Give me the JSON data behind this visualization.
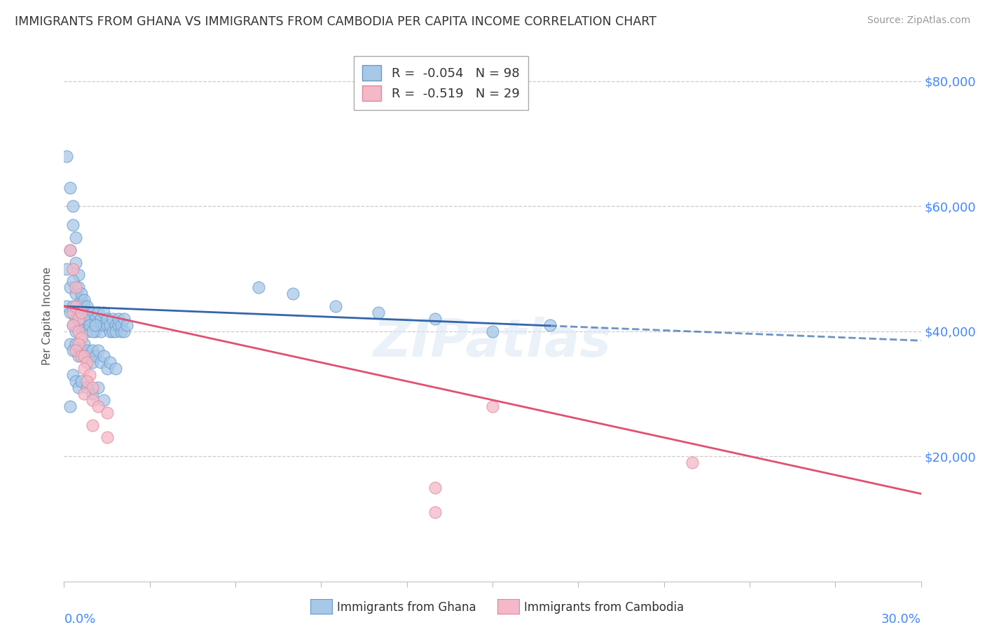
{
  "title": "IMMIGRANTS FROM GHANA VS IMMIGRANTS FROM CAMBODIA PER CAPITA INCOME CORRELATION CHART",
  "source": "Source: ZipAtlas.com",
  "ylabel": "Per Capita Income",
  "xmin": 0.0,
  "xmax": 0.3,
  "ymin": 0,
  "ymax": 85000,
  "yticks": [
    20000,
    40000,
    60000,
    80000
  ],
  "ytick_labels": [
    "$20,000",
    "$40,000",
    "$60,000",
    "$80,000"
  ],
  "ghana_color": "#a8c8e8",
  "cambodia_color": "#f4b8c8",
  "ghana_edge": "#6699cc",
  "cambodia_edge": "#e08898",
  "ghana_line_color": "#3366aa",
  "cambodia_line_color": "#e05070",
  "ghana_R": -0.054,
  "ghana_N": 98,
  "cambodia_R": -0.519,
  "cambodia_N": 29,
  "legend_label_ghana": "Immigrants from Ghana",
  "legend_label_cambodia": "Immigrants from Cambodia",
  "watermark": "ZIPatlas",
  "ghana_trend_x": [
    0.0,
    0.3
  ],
  "ghana_trend_y": [
    44000,
    38500
  ],
  "ghana_trend_solid_end": 0.17,
  "cambodia_trend_x": [
    0.0,
    0.3
  ],
  "cambodia_trend_y": [
    44000,
    14000
  ],
  "ghana_scatter": [
    [
      0.001,
      68000
    ],
    [
      0.002,
      63000
    ],
    [
      0.003,
      60000
    ],
    [
      0.003,
      57000
    ],
    [
      0.004,
      55000
    ],
    [
      0.002,
      53000
    ],
    [
      0.004,
      51000
    ],
    [
      0.005,
      49000
    ],
    [
      0.001,
      50000
    ],
    [
      0.002,
      47000
    ],
    [
      0.003,
      48000
    ],
    [
      0.004,
      46000
    ],
    [
      0.005,
      47000
    ],
    [
      0.006,
      45000
    ],
    [
      0.005,
      44000
    ],
    [
      0.006,
      46000
    ],
    [
      0.007,
      44000
    ],
    [
      0.007,
      45000
    ],
    [
      0.008,
      43000
    ],
    [
      0.008,
      44000
    ],
    [
      0.009,
      43000
    ],
    [
      0.006,
      42000
    ],
    [
      0.007,
      41000
    ],
    [
      0.008,
      42000
    ],
    [
      0.009,
      41000
    ],
    [
      0.01,
      43000
    ],
    [
      0.01,
      41000
    ],
    [
      0.011,
      42000
    ],
    [
      0.011,
      40000
    ],
    [
      0.012,
      41000
    ],
    [
      0.012,
      43000
    ],
    [
      0.013,
      42000
    ],
    [
      0.013,
      40000
    ],
    [
      0.014,
      41000
    ],
    [
      0.014,
      43000
    ],
    [
      0.015,
      41000
    ],
    [
      0.015,
      42000
    ],
    [
      0.016,
      40000
    ],
    [
      0.016,
      41000
    ],
    [
      0.017,
      42000
    ],
    [
      0.017,
      40000
    ],
    [
      0.018,
      41000
    ],
    [
      0.018,
      40000
    ],
    [
      0.019,
      41000
    ],
    [
      0.019,
      42000
    ],
    [
      0.02,
      40000
    ],
    [
      0.02,
      41000
    ],
    [
      0.021,
      42000
    ],
    [
      0.021,
      40000
    ],
    [
      0.022,
      41000
    ],
    [
      0.001,
      44000
    ],
    [
      0.002,
      43000
    ],
    [
      0.003,
      44000
    ],
    [
      0.004,
      42000
    ],
    [
      0.005,
      43000
    ],
    [
      0.003,
      41000
    ],
    [
      0.004,
      40000
    ],
    [
      0.005,
      42000
    ],
    [
      0.006,
      41000
    ],
    [
      0.007,
      42000
    ],
    [
      0.008,
      40000
    ],
    [
      0.009,
      41000
    ],
    [
      0.01,
      40000
    ],
    [
      0.011,
      41000
    ],
    [
      0.002,
      38000
    ],
    [
      0.003,
      37000
    ],
    [
      0.004,
      38000
    ],
    [
      0.005,
      36000
    ],
    [
      0.006,
      37000
    ],
    [
      0.007,
      38000
    ],
    [
      0.007,
      36000
    ],
    [
      0.008,
      37000
    ],
    [
      0.009,
      36000
    ],
    [
      0.01,
      37000
    ],
    [
      0.01,
      35000
    ],
    [
      0.011,
      36000
    ],
    [
      0.012,
      37000
    ],
    [
      0.013,
      35000
    ],
    [
      0.014,
      36000
    ],
    [
      0.015,
      34000
    ],
    [
      0.016,
      35000
    ],
    [
      0.018,
      34000
    ],
    [
      0.003,
      33000
    ],
    [
      0.004,
      32000
    ],
    [
      0.005,
      31000
    ],
    [
      0.006,
      32000
    ],
    [
      0.008,
      31000
    ],
    [
      0.01,
      30000
    ],
    [
      0.012,
      31000
    ],
    [
      0.014,
      29000
    ],
    [
      0.002,
      28000
    ],
    [
      0.068,
      47000
    ],
    [
      0.08,
      46000
    ],
    [
      0.095,
      44000
    ],
    [
      0.11,
      43000
    ],
    [
      0.13,
      42000
    ],
    [
      0.15,
      40000
    ],
    [
      0.17,
      41000
    ]
  ],
  "cambodia_scatter": [
    [
      0.002,
      53000
    ],
    [
      0.003,
      50000
    ],
    [
      0.004,
      47000
    ],
    [
      0.003,
      43000
    ],
    [
      0.004,
      44000
    ],
    [
      0.005,
      42000
    ],
    [
      0.006,
      43000
    ],
    [
      0.003,
      41000
    ],
    [
      0.005,
      40000
    ],
    [
      0.006,
      39000
    ],
    [
      0.005,
      38000
    ],
    [
      0.004,
      37000
    ],
    [
      0.006,
      36000
    ],
    [
      0.007,
      36000
    ],
    [
      0.008,
      35000
    ],
    [
      0.007,
      34000
    ],
    [
      0.009,
      33000
    ],
    [
      0.008,
      32000
    ],
    [
      0.01,
      31000
    ],
    [
      0.007,
      30000
    ],
    [
      0.01,
      29000
    ],
    [
      0.012,
      28000
    ],
    [
      0.015,
      27000
    ],
    [
      0.01,
      25000
    ],
    [
      0.015,
      23000
    ],
    [
      0.13,
      15000
    ],
    [
      0.15,
      28000
    ],
    [
      0.22,
      19000
    ],
    [
      0.13,
      11000
    ]
  ]
}
